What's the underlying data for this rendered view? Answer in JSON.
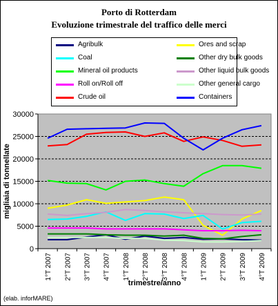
{
  "title_line1": "Porto di Rotterdam",
  "title_line2": "Evoluzione trimestrale del traffico delle merci",
  "credit": "(elab. inforMARE)",
  "chart_data": {
    "type": "line",
    "xlabel": "trimestre/anno",
    "ylabel": "migliaia di tonnellate",
    "ylim": [
      0,
      30000
    ],
    "yticks": [
      0,
      5000,
      10000,
      15000,
      20000,
      25000,
      30000
    ],
    "grid": true,
    "legend_position": "top",
    "categories": [
      "1°T 2007",
      "2°T 2007",
      "3°T 2007",
      "4°T 2007",
      "1°T 2008",
      "2°T 2008",
      "3°T 2008",
      "4°T 2008",
      "1°T 2009",
      "2°T 2009",
      "3°T 2009",
      "4°T 2009"
    ],
    "series": [
      {
        "name": "Agribulk",
        "color": "#000080",
        "values": [
          2000,
          2000,
          2600,
          3100,
          2100,
          2800,
          2300,
          2500,
          2100,
          2200,
          2000,
          1900
        ]
      },
      {
        "name": "Ores and scrap",
        "color": "#ffff00",
        "values": [
          9000,
          9700,
          10900,
          10100,
          10400,
          10700,
          11500,
          10900,
          5200,
          3000,
          6600,
          8500
        ]
      },
      {
        "name": "Coal",
        "color": "#00ffff",
        "values": [
          6500,
          6600,
          7200,
          8200,
          6300,
          7800,
          7700,
          6700,
          7400,
          4400,
          5800,
          6100
        ]
      },
      {
        "name": "Other dry bulk goods",
        "color": "#008000",
        "values": [
          3300,
          3300,
          3300,
          3100,
          3000,
          3000,
          2800,
          3000,
          2300,
          2200,
          2700,
          3100
        ]
      },
      {
        "name": "Mineral oil products",
        "color": "#00ff00",
        "values": [
          15200,
          14600,
          14500,
          13100,
          15000,
          15300,
          14500,
          13900,
          16700,
          18500,
          18500,
          17900
        ]
      },
      {
        "name": "Other liquid bulk goods",
        "color": "#cc99cc",
        "values": [
          7700,
          7400,
          7800,
          8100,
          8700,
          8500,
          8200,
          8000,
          7800,
          7600,
          7500,
          7700
        ]
      },
      {
        "name": "Roll on/Roll off",
        "color": "#ff00ff",
        "values": [
          4600,
          4600,
          4600,
          4400,
          4400,
          4400,
          4400,
          4200,
          4000,
          4000,
          4100,
          4000
        ]
      },
      {
        "name": "Other general cargo",
        "color": "#ccffcc",
        "values": [
          2500,
          2500,
          2500,
          2500,
          2300,
          2300,
          1900,
          1800,
          1500,
          1500,
          1600,
          1800
        ]
      },
      {
        "name": "Crude oil",
        "color": "#ff0000",
        "values": [
          22900,
          23200,
          25500,
          25900,
          26000,
          25000,
          25800,
          23900,
          24900,
          24100,
          22800,
          23100
        ]
      },
      {
        "name": "Containers",
        "color": "#0000ff",
        "values": [
          24600,
          26600,
          26700,
          26800,
          26900,
          28000,
          27900,
          24600,
          22000,
          24600,
          26500,
          27400
        ]
      }
    ]
  }
}
